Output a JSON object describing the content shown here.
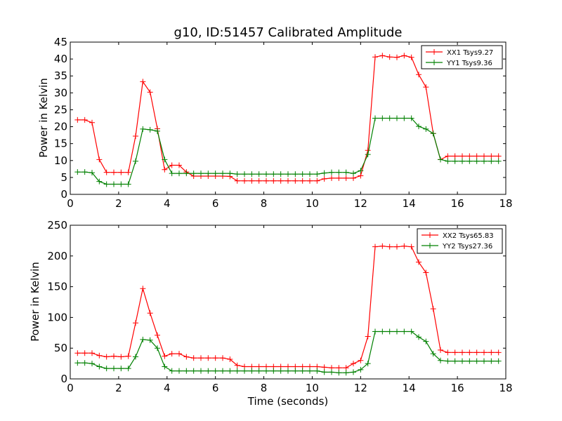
{
  "figure": {
    "title": "g10, ID:51457 Calibrated Amplitude"
  },
  "chart_data": [
    {
      "type": "line",
      "title": "g10, ID:51457 Calibrated Amplitude",
      "xlabel": "",
      "ylabel": "Power in Kelvin",
      "xlim": [
        0,
        18
      ],
      "ylim": [
        0,
        45
      ],
      "xticks": [
        0,
        2,
        4,
        6,
        8,
        10,
        12,
        14,
        16,
        18
      ],
      "yticks": [
        0,
        5,
        10,
        15,
        20,
        25,
        30,
        35,
        40,
        45
      ],
      "grid": false,
      "legend_position": "top-right",
      "x": [
        0.3,
        0.6,
        0.9,
        1.2,
        1.5,
        1.8,
        2.1,
        2.4,
        2.7,
        3.0,
        3.3,
        3.6,
        3.9,
        4.2,
        4.5,
        4.8,
        5.1,
        5.4,
        5.7,
        6.0,
        6.3,
        6.6,
        6.9,
        7.2,
        7.5,
        7.8,
        8.1,
        8.4,
        8.7,
        9.0,
        9.3,
        9.6,
        9.9,
        10.2,
        10.5,
        10.8,
        11.1,
        11.4,
        11.7,
        12.0,
        12.3,
        12.6,
        12.9,
        13.2,
        13.5,
        13.8,
        14.1,
        14.4,
        14.7,
        15.0,
        15.3,
        15.6,
        15.9,
        16.2,
        16.5,
        16.8,
        17.1,
        17.4,
        17.7
      ],
      "series": [
        {
          "name": "XX1 Tsys9.27",
          "color": "#ff0000",
          "values": [
            22.0,
            22.0,
            21.2,
            10.3,
            6.5,
            6.5,
            6.5,
            6.5,
            17.2,
            33.3,
            30.2,
            19.4,
            7.3,
            8.6,
            8.6,
            6.6,
            5.4,
            5.4,
            5.4,
            5.4,
            5.4,
            5.3,
            4.0,
            4.0,
            4.0,
            4.0,
            4.0,
            4.0,
            4.0,
            4.0,
            4.0,
            4.0,
            4.0,
            4.0,
            4.6,
            4.8,
            4.8,
            4.8,
            4.8,
            5.5,
            13.0,
            40.6,
            41.0,
            40.6,
            40.5,
            41.0,
            40.5,
            35.4,
            31.7,
            18.0,
            10.3,
            11.3,
            11.3,
            11.3,
            11.3,
            11.3,
            11.3,
            11.3,
            11.3
          ]
        },
        {
          "name": "YY1 Tsys9.36",
          "color": "#008000",
          "values": [
            6.6,
            6.6,
            6.4,
            3.8,
            3.0,
            3.0,
            3.0,
            3.0,
            9.8,
            19.3,
            19.1,
            18.7,
            10.3,
            6.2,
            6.2,
            6.2,
            6.2,
            6.2,
            6.2,
            6.2,
            6.2,
            6.2,
            6.0,
            6.0,
            6.0,
            6.0,
            6.0,
            6.0,
            6.0,
            6.0,
            6.0,
            6.0,
            6.0,
            6.0,
            6.3,
            6.5,
            6.5,
            6.5,
            6.2,
            7.0,
            11.8,
            22.5,
            22.5,
            22.5,
            22.5,
            22.5,
            22.5,
            20.1,
            19.3,
            18.0,
            10.3,
            9.8,
            9.8,
            9.8,
            9.8,
            9.8,
            9.8,
            9.8,
            9.8
          ]
        }
      ]
    },
    {
      "type": "line",
      "title": "",
      "xlabel": "Time (seconds)",
      "ylabel": "Power in Kelvin",
      "xlim": [
        0,
        18
      ],
      "ylim": [
        0,
        250
      ],
      "xticks": [
        0,
        2,
        4,
        6,
        8,
        10,
        12,
        14,
        16,
        18
      ],
      "yticks": [
        0,
        50,
        100,
        150,
        200,
        250
      ],
      "grid": false,
      "legend_position": "top-right",
      "x": [
        0.3,
        0.6,
        0.9,
        1.2,
        1.5,
        1.8,
        2.1,
        2.4,
        2.7,
        3.0,
        3.3,
        3.6,
        3.9,
        4.2,
        4.5,
        4.8,
        5.1,
        5.4,
        5.7,
        6.0,
        6.3,
        6.6,
        6.9,
        7.2,
        7.5,
        7.8,
        8.1,
        8.4,
        8.7,
        9.0,
        9.3,
        9.6,
        9.9,
        10.2,
        10.5,
        10.8,
        11.1,
        11.4,
        11.7,
        12.0,
        12.3,
        12.6,
        12.9,
        13.2,
        13.5,
        13.8,
        14.1,
        14.4,
        14.7,
        15.0,
        15.3,
        15.6,
        15.9,
        16.2,
        16.5,
        16.8,
        17.1,
        17.4,
        17.7
      ],
      "series": [
        {
          "name": "XX2 Tsys65.83",
          "color": "#ff0000",
          "values": [
            42,
            42,
            42,
            38,
            36,
            37,
            36,
            37,
            91,
            147,
            107,
            71,
            37,
            41,
            41,
            36,
            34,
            34,
            34,
            34,
            34,
            32,
            22,
            20,
            20,
            20,
            20,
            20,
            20,
            20,
            20,
            20,
            20,
            20,
            19,
            18,
            18,
            18,
            25,
            30,
            69,
            215,
            216,
            215,
            215,
            216,
            215,
            190,
            173,
            114,
            47,
            43,
            43,
            43,
            43,
            43,
            43,
            43,
            43
          ]
        },
        {
          "name": "YY2 Tsys27.36",
          "color": "#008000",
          "values": [
            26,
            26,
            25,
            20,
            17,
            17,
            17,
            17,
            36,
            64,
            63,
            50,
            20,
            13,
            13,
            13,
            13,
            13,
            13,
            13,
            13,
            13,
            13,
            13,
            13,
            13,
            13,
            13,
            13,
            13,
            13,
            13,
            13,
            13,
            11,
            11,
            10,
            10,
            11,
            15,
            25,
            77,
            77,
            77,
            77,
            77,
            77,
            68,
            61,
            41,
            30,
            29,
            29,
            29,
            29,
            29,
            29,
            29,
            29
          ]
        }
      ]
    }
  ]
}
